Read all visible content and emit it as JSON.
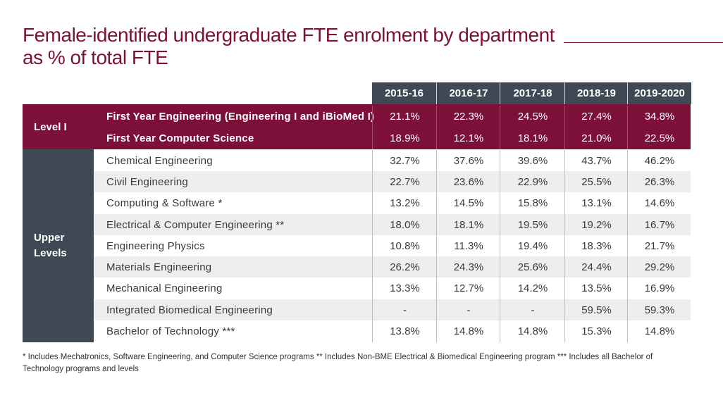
{
  "title": {
    "line1": "Female-identified undergraduate FTE enrolment by department",
    "line2": "as % of total FTE"
  },
  "columns": [
    "2015-16",
    "2016-17",
    "2017-18",
    "2018-19",
    "2019-2020"
  ],
  "groups": {
    "level1": "Level I",
    "upper": [
      "Upper",
      "Levels"
    ]
  },
  "rows": [
    {
      "name": "First Year Engineering (Engineering I and iBioMed I)",
      "values": [
        "21.1%",
        "22.3%",
        "24.5%",
        "27.4%",
        "34.8%"
      ]
    },
    {
      "name": "First Year Computer Science",
      "values": [
        "18.9%",
        "12.1%",
        "18.1%",
        "21.0%",
        "22.5%"
      ]
    },
    {
      "name": "Chemical Engineering",
      "values": [
        "32.7%",
        "37.6%",
        "39.6%",
        "43.7%",
        "46.2%"
      ]
    },
    {
      "name": "Civil Engineering",
      "values": [
        "22.7%",
        "23.6%",
        "22.9%",
        "25.5%",
        "26.3%"
      ]
    },
    {
      "name": "Computing & Software *",
      "values": [
        "13.2%",
        "14.5%",
        "15.8%",
        "13.1%",
        "14.6%"
      ]
    },
    {
      "name": "Electrical & Computer Engineering **",
      "values": [
        "18.0%",
        "18.1%",
        "19.5%",
        "19.2%",
        "16.7%"
      ]
    },
    {
      "name": "Engineering Physics",
      "values": [
        "10.8%",
        "11.3%",
        "19.4%",
        "18.3%",
        "21.7%"
      ]
    },
    {
      "name": "Materials Engineering",
      "values": [
        "26.2%",
        "24.3%",
        "25.6%",
        "24.4%",
        "29.2%"
      ]
    },
    {
      "name": "Mechanical Engineering",
      "values": [
        "13.3%",
        "12.7%",
        "14.2%",
        "13.5%",
        "16.9%"
      ]
    },
    {
      "name": "Integrated Biomedical Engineering",
      "values": [
        "-",
        "-",
        "-",
        "59.5%",
        "59.3%"
      ]
    },
    {
      "name": "Bachelor of Technology ***",
      "values": [
        "13.8%",
        "14.8%",
        "14.8%",
        "15.3%",
        "14.8%"
      ]
    }
  ],
  "footnote": "* Includes Mechatronics, Software Engineering, and Computer Science programs    ** Includes Non-BME Electrical & Biomedical Engineering program    *** Includes all Bachelor of Technology programs and levels",
  "colors": {
    "maroon": "#7d1038",
    "slate": "#3f4955",
    "stripe": "#eeeeee"
  }
}
